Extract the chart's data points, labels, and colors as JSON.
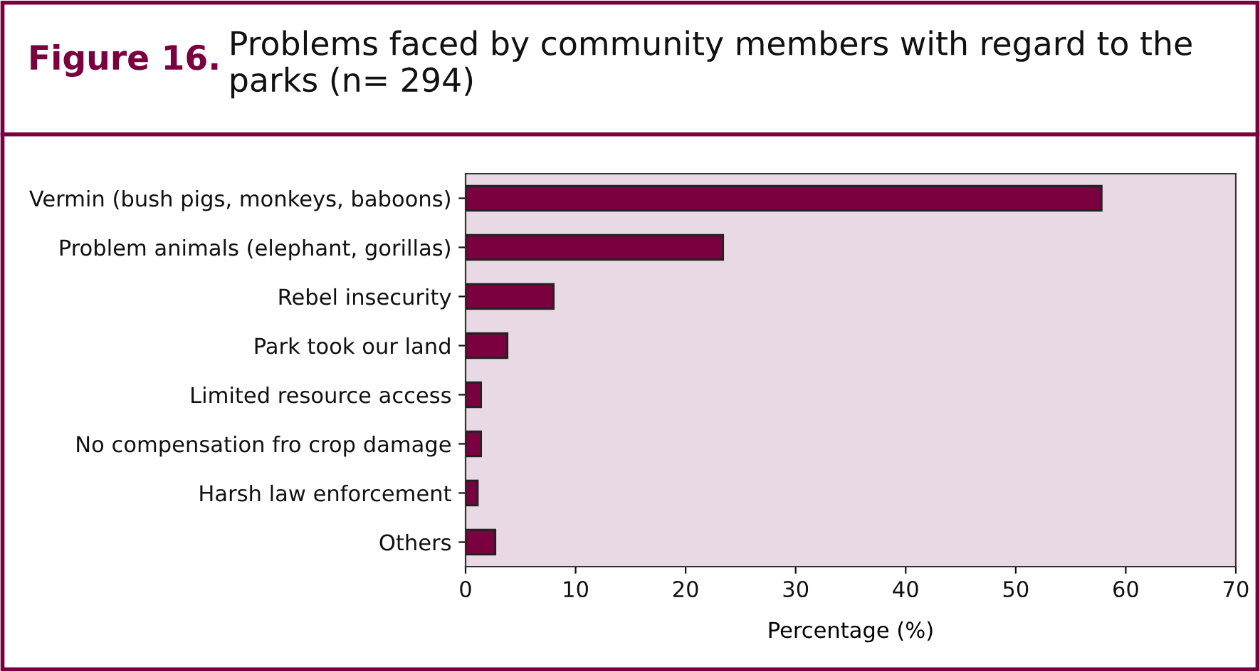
{
  "chart_data": {
    "type": "bar",
    "orientation": "horizontal",
    "title": "Figure 16.",
    "subtitle": "Problems faced by community members with regard to the parks (n= 294)",
    "xlabel": "Percentage (%)",
    "categories": [
      "Vermin (bush pigs, monkeys, baboons)",
      "Problem animals (elephant, gorillas)",
      "Rebel insecurity",
      "Park took our land",
      "Limited resource access",
      "No compensation fro crop damage",
      "Harsh law enforcement",
      "Others"
    ],
    "values": [
      57.8,
      23.4,
      8.0,
      3.8,
      1.4,
      1.4,
      1.1,
      2.7
    ],
    "color": "#7a0040",
    "xlim": [
      0,
      70
    ],
    "xticks": [
      0,
      10,
      20,
      30,
      40,
      50,
      60,
      70
    ],
    "grid": false
  }
}
